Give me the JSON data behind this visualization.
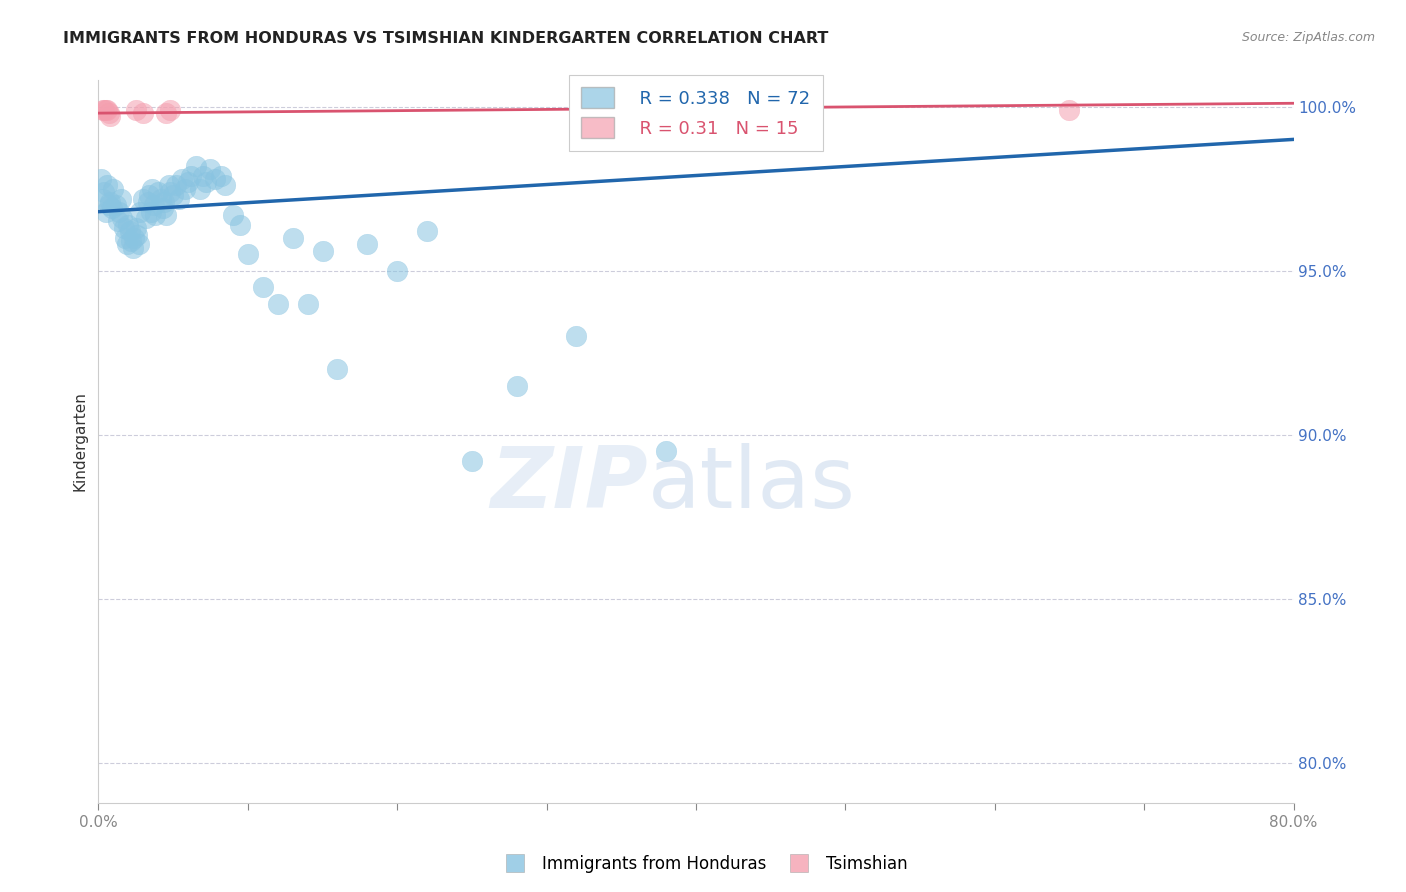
{
  "title": "IMMIGRANTS FROM HONDURAS VS TSIMSHIAN KINDERGARTEN CORRELATION CHART",
  "source": "Source: ZipAtlas.com",
  "ylabel": "Kindergarten",
  "xlim": [
    0.0,
    0.8
  ],
  "ylim": [
    0.788,
    1.008
  ],
  "yticks": [
    0.8,
    0.85,
    0.9,
    0.95,
    1.0
  ],
  "ytick_labels": [
    "80.0%",
    "85.0%",
    "90.0%",
    "95.0%",
    "100.0%"
  ],
  "xticks": [
    0.0,
    0.1,
    0.2,
    0.3,
    0.4,
    0.5,
    0.6,
    0.7,
    0.8
  ],
  "xtick_labels": [
    "0.0%",
    "",
    "",
    "",
    "",
    "",
    "",
    "",
    "80.0%"
  ],
  "blue_R": 0.338,
  "blue_N": 72,
  "pink_R": 0.31,
  "pink_N": 15,
  "blue_color": "#89c4e1",
  "pink_color": "#f4a0b0",
  "blue_line_color": "#2166ac",
  "pink_line_color": "#d9536f",
  "grid_color": "#c8c8d8",
  "blue_scatter_x": [
    0.002,
    0.003,
    0.004,
    0.005,
    0.006,
    0.007,
    0.008,
    0.009,
    0.01,
    0.012,
    0.013,
    0.014,
    0.015,
    0.016,
    0.017,
    0.018,
    0.019,
    0.02,
    0.021,
    0.022,
    0.023,
    0.024,
    0.025,
    0.026,
    0.027,
    0.028,
    0.03,
    0.032,
    0.033,
    0.034,
    0.035,
    0.036,
    0.037,
    0.038,
    0.04,
    0.042,
    0.043,
    0.044,
    0.045,
    0.047,
    0.048,
    0.05,
    0.052,
    0.054,
    0.056,
    0.058,
    0.06,
    0.062,
    0.065,
    0.068,
    0.07,
    0.072,
    0.075,
    0.078,
    0.082,
    0.085,
    0.09,
    0.095,
    0.1,
    0.11,
    0.12,
    0.13,
    0.14,
    0.15,
    0.16,
    0.18,
    0.2,
    0.22,
    0.25,
    0.28,
    0.32,
    0.38
  ],
  "blue_scatter_y": [
    0.978,
    0.972,
    0.974,
    0.968,
    0.976,
    0.97,
    0.971,
    0.969,
    0.975,
    0.97,
    0.965,
    0.968,
    0.972,
    0.966,
    0.963,
    0.96,
    0.958,
    0.964,
    0.962,
    0.959,
    0.957,
    0.96,
    0.963,
    0.961,
    0.958,
    0.968,
    0.972,
    0.966,
    0.971,
    0.973,
    0.968,
    0.975,
    0.97,
    0.967,
    0.974,
    0.972,
    0.969,
    0.971,
    0.967,
    0.976,
    0.974,
    0.973,
    0.976,
    0.972,
    0.978,
    0.975,
    0.977,
    0.979,
    0.982,
    0.975,
    0.979,
    0.977,
    0.981,
    0.978,
    0.979,
    0.976,
    0.967,
    0.964,
    0.955,
    0.945,
    0.94,
    0.96,
    0.94,
    0.956,
    0.92,
    0.958,
    0.95,
    0.962,
    0.892,
    0.915,
    0.93,
    0.895
  ],
  "pink_scatter_x": [
    0.003,
    0.004,
    0.005,
    0.006,
    0.007,
    0.008,
    0.025,
    0.03,
    0.045,
    0.048,
    0.34,
    0.345,
    0.38,
    0.39,
    0.65
  ],
  "pink_scatter_y": [
    0.999,
    0.999,
    0.999,
    0.999,
    0.998,
    0.997,
    0.999,
    0.998,
    0.998,
    0.999,
    0.999,
    0.999,
    0.999,
    0.999,
    0.999
  ],
  "blue_trend_x0": 0.0,
  "blue_trend_y0": 0.968,
  "blue_trend_x1": 0.8,
  "blue_trend_y1": 0.99,
  "pink_trend_x0": 0.0,
  "pink_trend_y0": 0.998,
  "pink_trend_x1": 0.8,
  "pink_trend_y1": 1.001
}
